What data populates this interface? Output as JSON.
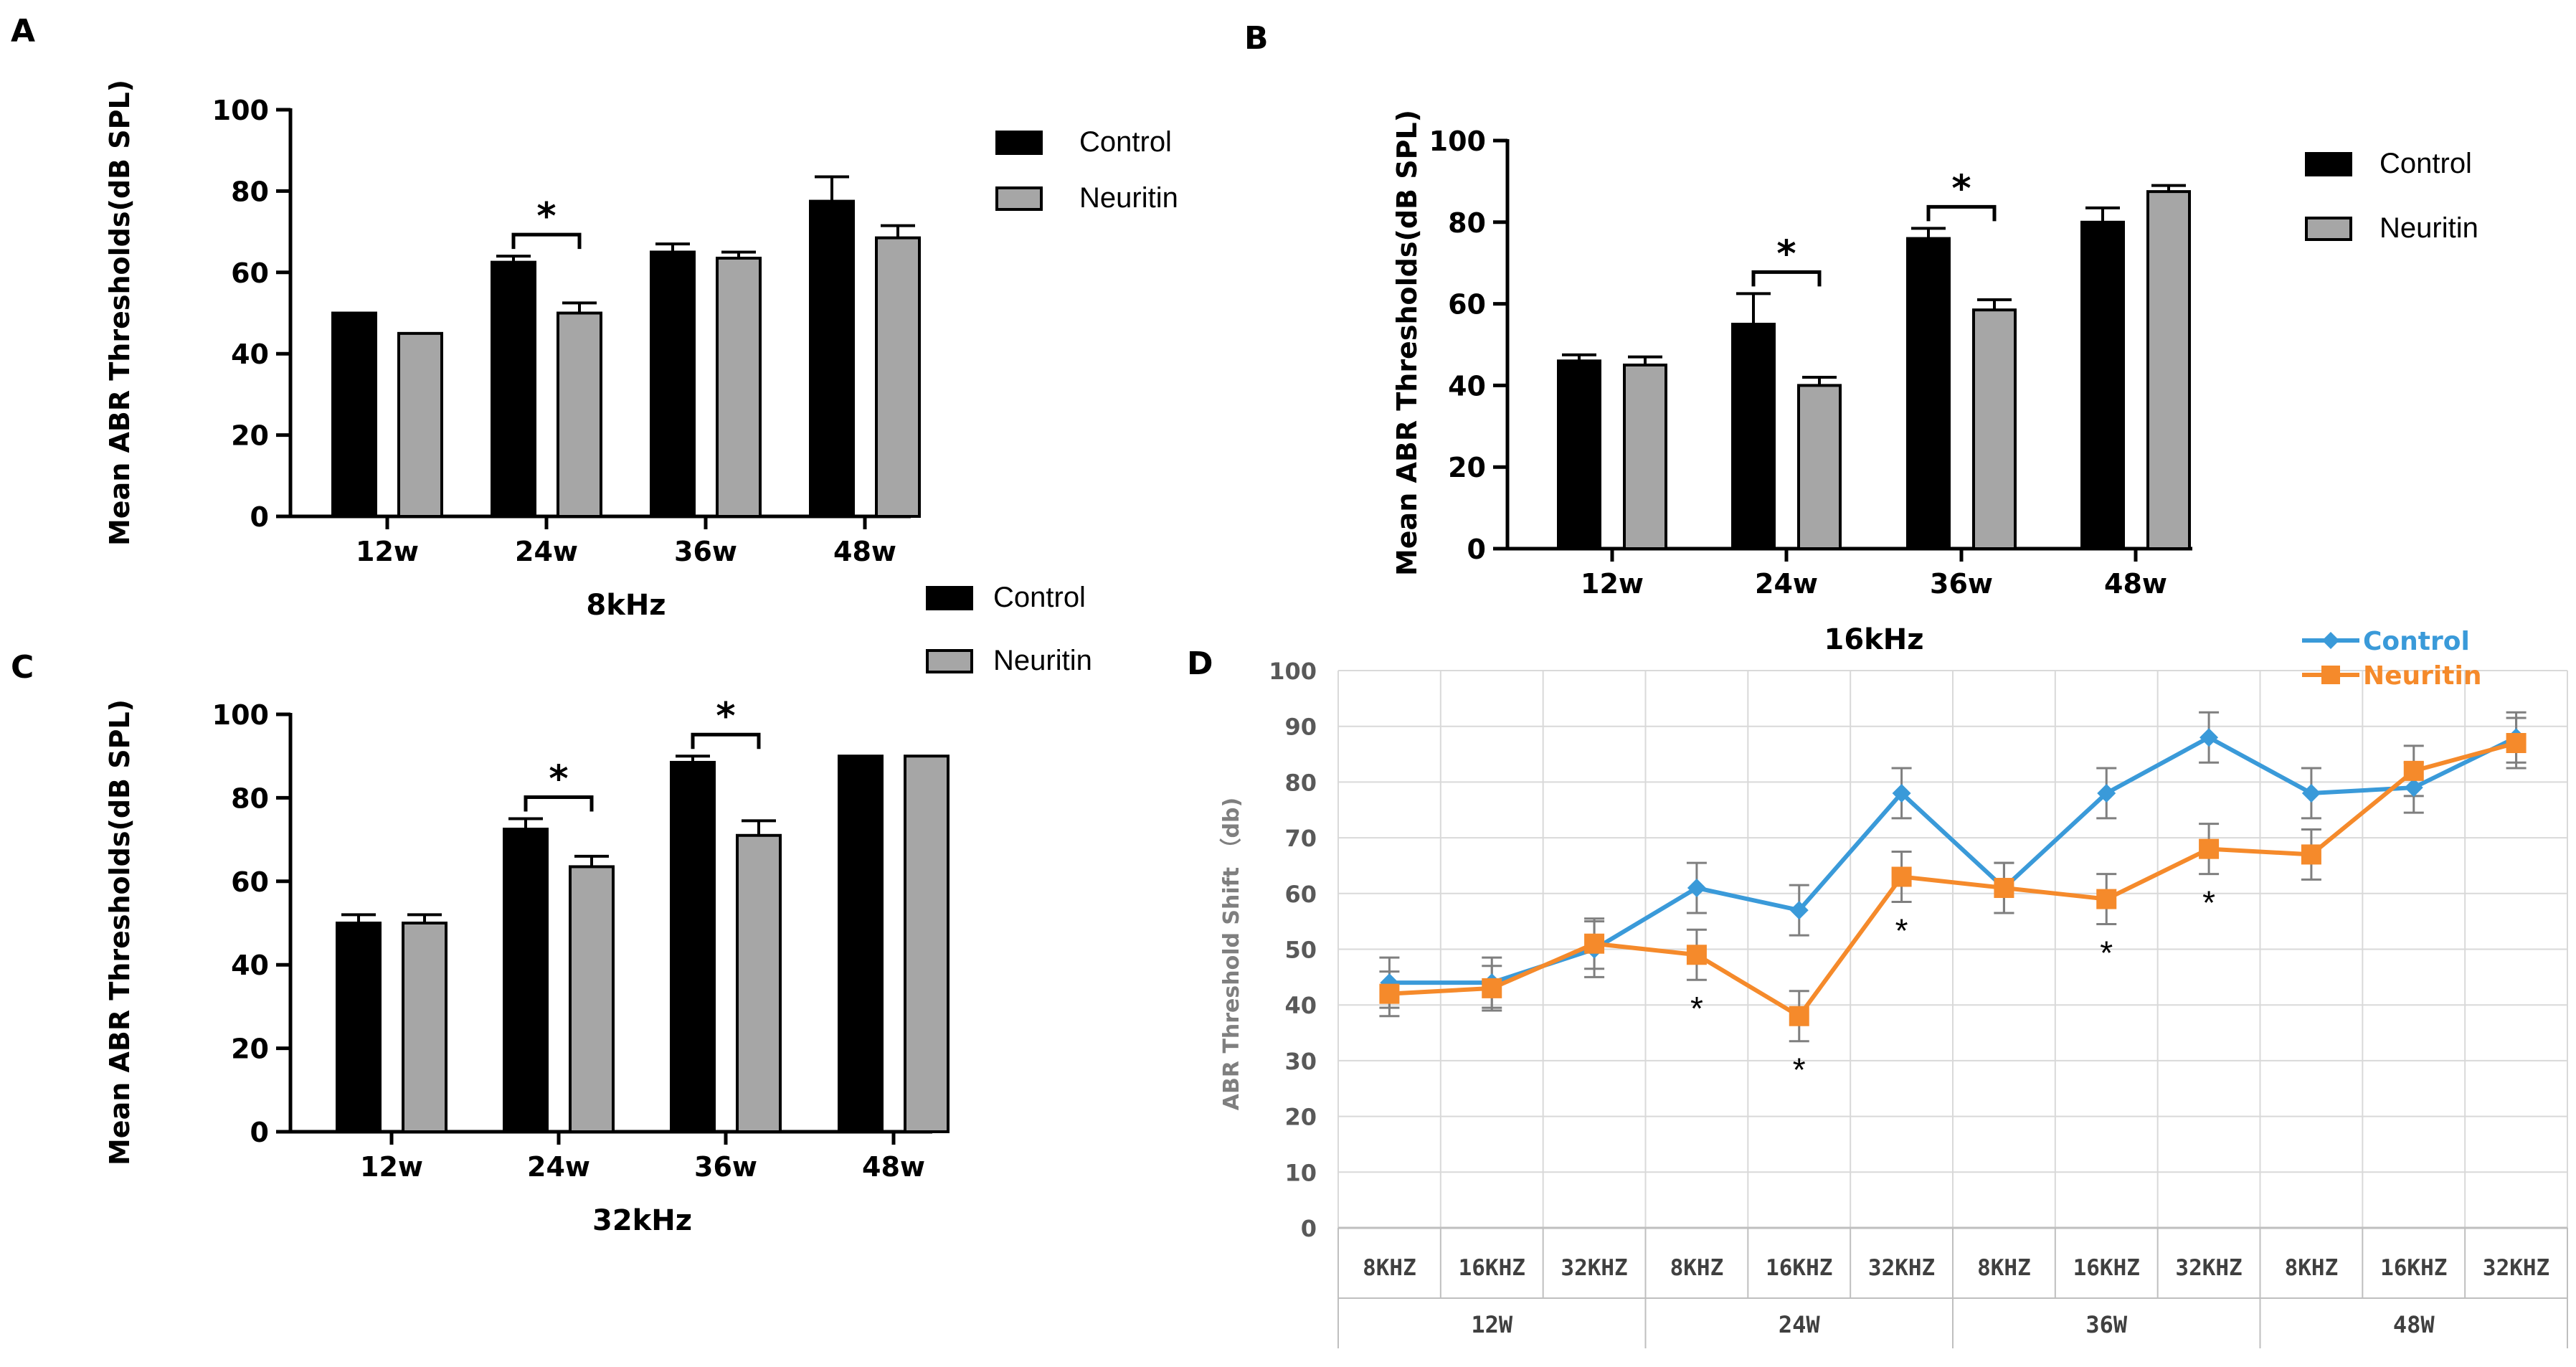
{
  "colors": {
    "control_bar": "#000000",
    "neuritin_bar": "#a6a6a6",
    "control_line": "#3a9ad9",
    "neuritin_line": "#f58a2b",
    "grid": "#d9d9d9"
  },
  "chart_data": [
    {
      "panel": "A",
      "type": "bar",
      "title": "8kHz",
      "xlabel": "8kHz",
      "ylabel": "Mean ABR Thresholds(dB SPL)",
      "categories": [
        "12w",
        "24w",
        "36w",
        "48w"
      ],
      "ylim": [
        0,
        100
      ],
      "yticks": [
        "0",
        "20",
        "40",
        "60",
        "80",
        "100"
      ],
      "legend": [
        "Control",
        "Neuritin"
      ],
      "series": [
        {
          "name": "Control",
          "values": [
            50,
            62.5,
            65,
            77.5
          ],
          "errors": [
            0,
            1.5,
            2,
            6
          ]
        },
        {
          "name": "Neuritin",
          "values": [
            45,
            50,
            63.5,
            68.5
          ],
          "errors": [
            0,
            2.5,
            1.5,
            3
          ]
        }
      ],
      "significance": [
        {
          "category": "24w",
          "label": "*"
        }
      ]
    },
    {
      "panel": "B",
      "type": "bar",
      "title": "16kHz",
      "xlabel": "16kHz",
      "ylabel": "Mean ABR Thresholds(dB SPL)",
      "categories": [
        "12w",
        "24w",
        "36w",
        "48w"
      ],
      "ylim": [
        0,
        100
      ],
      "yticks": [
        "0",
        "20",
        "40",
        "60",
        "80",
        "100"
      ],
      "legend": [
        "Control",
        "Neuritin"
      ],
      "series": [
        {
          "name": "Control",
          "values": [
            46,
            55,
            76,
            80
          ],
          "errors": [
            1.5,
            7.5,
            2.5,
            3.5
          ]
        },
        {
          "name": "Neuritin",
          "values": [
            45,
            40,
            58.5,
            87.5
          ],
          "errors": [
            2,
            2,
            2.5,
            1.5
          ]
        }
      ],
      "significance": [
        {
          "category": "24w",
          "label": "*"
        },
        {
          "category": "36w",
          "label": "*"
        }
      ]
    },
    {
      "panel": "C",
      "type": "bar",
      "title": "32kHz",
      "xlabel": "32kHz",
      "ylabel": "Mean ABR Thresholds(dB SPL)",
      "categories": [
        "12w",
        "24w",
        "36w",
        "48w"
      ],
      "ylim": [
        0,
        100
      ],
      "yticks": [
        "0",
        "20",
        "40",
        "60",
        "80",
        "100"
      ],
      "legend": [
        "Control",
        "Neuritin"
      ],
      "series": [
        {
          "name": "Control",
          "values": [
            50,
            72.5,
            88.5,
            90
          ],
          "errors": [
            2,
            2.5,
            1.5,
            0
          ]
        },
        {
          "name": "Neuritin",
          "values": [
            50,
            63.5,
            71,
            90
          ],
          "errors": [
            2,
            2.5,
            3.5,
            0
          ]
        }
      ],
      "significance": [
        {
          "category": "24w",
          "label": "*"
        },
        {
          "category": "36w",
          "label": "*"
        }
      ]
    },
    {
      "panel": "D",
      "type": "line",
      "ylabel": "ABR Threshold Shift （db)",
      "ylim": [
        0,
        100
      ],
      "yticks": [
        "0",
        "10",
        "20",
        "30",
        "40",
        "50",
        "60",
        "70",
        "80",
        "90",
        "100"
      ],
      "categories": [
        "8KHZ",
        "16KHZ",
        "32KHZ",
        "8KHZ",
        "16KHZ",
        "32KHZ",
        "8KHZ",
        "16KHZ",
        "32KHZ",
        "8KHZ",
        "16KHZ",
        "32KHZ"
      ],
      "groups": [
        "12W",
        "24W",
        "36W",
        "48W"
      ],
      "legend": [
        "Control",
        "Neuritin"
      ],
      "series": [
        {
          "name": "Control",
          "values": [
            44,
            44,
            50,
            61,
            57,
            78,
            61,
            78,
            88,
            78,
            79,
            88
          ],
          "errors": [
            4.5,
            4.5,
            5,
            4.5,
            4.5,
            4.5,
            4.5,
            4.5,
            4.5,
            4.5,
            4.5,
            4.5
          ]
        },
        {
          "name": "Neuritin",
          "values": [
            42,
            43,
            51,
            49,
            38,
            63,
            61,
            59,
            68,
            67,
            82,
            87
          ],
          "errors": [
            4,
            4,
            4.5,
            4.5,
            4.5,
            4.5,
            4.5,
            4.5,
            4.5,
            4.5,
            4.5,
            4.5
          ]
        }
      ],
      "significance": [
        {
          "index": 3,
          "label": "*"
        },
        {
          "index": 4,
          "label": "*"
        },
        {
          "index": 5,
          "label": "*"
        },
        {
          "index": 7,
          "label": "*"
        },
        {
          "index": 8,
          "label": "*"
        }
      ]
    }
  ]
}
